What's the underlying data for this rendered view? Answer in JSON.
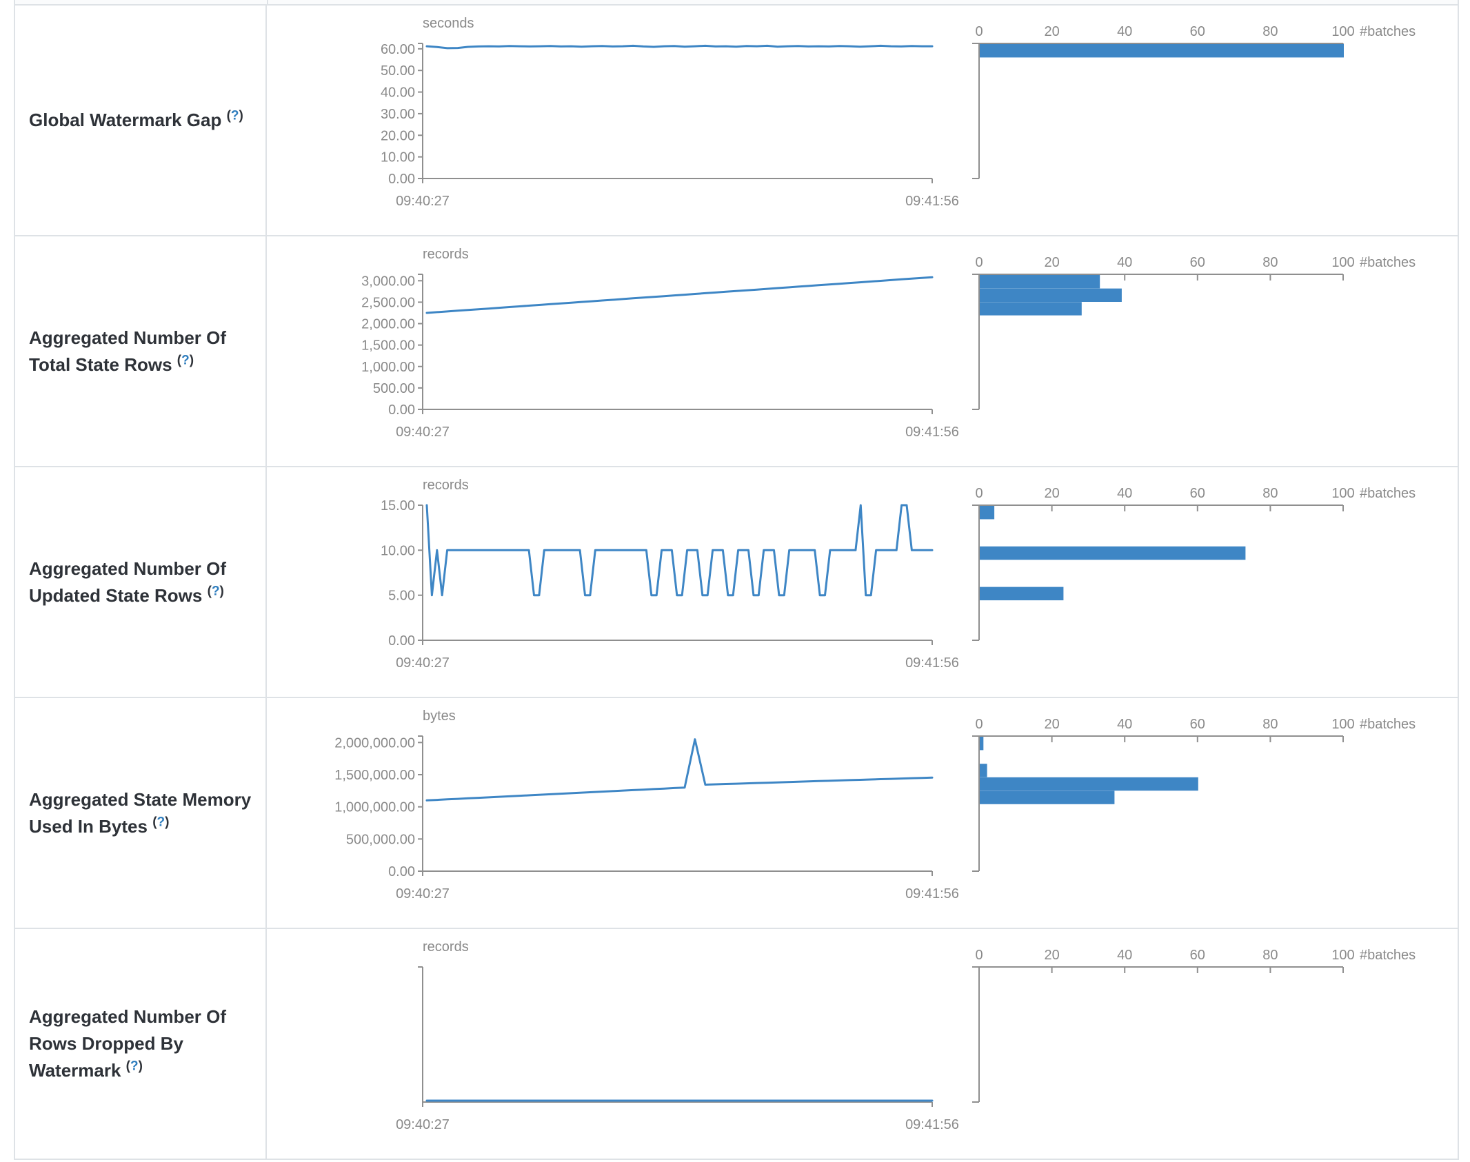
{
  "colors": {
    "accent_blue": "#3e86c5",
    "axis_gray": "#8f8f8f",
    "tick_text_gray": "#8a8a8a",
    "label_dark": "#2e3238",
    "help_blue": "#2e7dbe",
    "border_gray": "#dee2e6"
  },
  "help": {
    "open": "(",
    "q": "?",
    "close": ")"
  },
  "rows": [
    {
      "label": "Global Watermark Gap"
    },
    {
      "label": "Aggregated Number Of Total State Rows"
    },
    {
      "label": "Aggregated Number Of Updated State Rows"
    },
    {
      "label": "Aggregated State Memory Used In Bytes"
    },
    {
      "label": "Aggregated Number Of Rows Dropped By Watermark"
    }
  ],
  "chart_data": [
    {
      "metric": "Global Watermark Gap",
      "timeline": {
        "type": "line",
        "unit": "seconds",
        "x_start_label": "09:40:27",
        "x_end_label": "09:41:56",
        "y_ticks": [
          0,
          10,
          20,
          30,
          40,
          50,
          60
        ],
        "axis_max": 62.5,
        "values": [
          61.2,
          60.8,
          60.3,
          60.4,
          60.9,
          61.1,
          61.2,
          61.1,
          61.3,
          61.2,
          61.1,
          61.2,
          61.3,
          61.1,
          61.2,
          61.0,
          61.2,
          61.3,
          61.1,
          61.2,
          61.4,
          61.1,
          60.9,
          61.2,
          61.3,
          61.0,
          61.2,
          61.4,
          61.1,
          61.2,
          61.0,
          61.3,
          61.2,
          61.4,
          61.0,
          61.2,
          61.3,
          61.1,
          61.2,
          61.1,
          61.3,
          61.2,
          61.0,
          61.2,
          61.4,
          61.2,
          61.1,
          61.3,
          61.2,
          61.2
        ]
      },
      "histogram": {
        "type": "bar",
        "x_label": "#batches",
        "x_ticks": [
          0,
          20,
          40,
          60,
          80,
          100
        ],
        "x_max": 100,
        "bins_top_to_bottom": [
          100,
          0,
          0,
          0,
          0,
          0,
          0,
          0,
          0,
          0
        ]
      }
    },
    {
      "metric": "Aggregated Number Of Total State Rows",
      "timeline": {
        "type": "line",
        "unit": "records",
        "x_start_label": "09:40:27",
        "x_end_label": "09:41:56",
        "y_ticks": [
          0,
          500,
          1000,
          1500,
          2000,
          2500,
          3000
        ],
        "axis_max": 3150,
        "values": [
          2250,
          2267,
          2284,
          2301,
          2318,
          2335,
          2352,
          2369,
          2386,
          2403,
          2420,
          2437,
          2454,
          2471,
          2488,
          2505,
          2522,
          2539,
          2556,
          2573,
          2590,
          2607,
          2624,
          2641,
          2658,
          2675,
          2692,
          2709,
          2726,
          2743,
          2760,
          2777,
          2794,
          2811,
          2828,
          2845,
          2862,
          2879,
          2896,
          2913,
          2930,
          2947,
          2964,
          2981,
          2998,
          3015,
          3032,
          3049,
          3066,
          3083
        ]
      },
      "histogram": {
        "type": "bar",
        "x_label": "#batches",
        "x_ticks": [
          0,
          20,
          40,
          60,
          80,
          100
        ],
        "x_max": 100,
        "bins_top_to_bottom": [
          33,
          39,
          28,
          0,
          0,
          0,
          0,
          0,
          0,
          0
        ]
      }
    },
    {
      "metric": "Aggregated Number Of Updated State Rows",
      "timeline": {
        "type": "line",
        "unit": "records",
        "x_start_label": "09:40:27",
        "x_end_label": "09:41:56",
        "y_ticks": [
          0,
          5,
          10,
          15
        ],
        "axis_max": 15,
        "values": [
          15,
          5,
          10,
          5,
          10,
          10,
          10,
          10,
          10,
          10,
          10,
          10,
          10,
          10,
          10,
          10,
          10,
          10,
          10,
          10,
          10,
          5,
          5,
          10,
          10,
          10,
          10,
          10,
          10,
          10,
          10,
          5,
          5,
          10,
          10,
          10,
          10,
          10,
          10,
          10,
          10,
          10,
          10,
          10,
          5,
          5,
          10,
          10,
          10,
          5,
          5,
          10,
          10,
          10,
          5,
          5,
          10,
          10,
          10,
          5,
          5,
          10,
          10,
          10,
          5,
          5,
          10,
          10,
          10,
          5,
          5,
          10,
          10,
          10,
          10,
          10,
          10,
          5,
          5,
          10,
          10,
          10,
          10,
          10,
          10,
          15,
          5,
          5,
          10,
          10,
          10,
          10,
          10,
          15,
          15,
          10,
          10,
          10,
          10,
          10
        ]
      },
      "histogram": {
        "type": "bar",
        "x_label": "#batches",
        "x_ticks": [
          0,
          20,
          40,
          60,
          80,
          100
        ],
        "x_max": 100,
        "bins_top_to_bottom": [
          4,
          0,
          0,
          73,
          0,
          0,
          23,
          0,
          0,
          0
        ]
      }
    },
    {
      "metric": "Aggregated State Memory Used In Bytes",
      "timeline": {
        "type": "line",
        "unit": "bytes",
        "x_start_label": "09:40:27",
        "x_end_label": "09:41:56",
        "y_ticks": [
          0,
          500000,
          1000000,
          1500000,
          2000000
        ],
        "axis_max": 2100000,
        "values": [
          1100000,
          1108000,
          1116000,
          1124000,
          1132000,
          1140000,
          1148000,
          1156000,
          1164000,
          1172000,
          1180000,
          1188000,
          1196000,
          1204000,
          1212000,
          1220000,
          1228000,
          1236000,
          1244000,
          1252000,
          1260000,
          1268000,
          1276000,
          1284000,
          1292000,
          1300000,
          2050000,
          1345000,
          1350000,
          1355000,
          1360000,
          1365000,
          1370000,
          1375000,
          1380000,
          1385000,
          1390000,
          1395000,
          1400000,
          1405000,
          1410000,
          1415000,
          1420000,
          1425000,
          1430000,
          1435000,
          1440000,
          1445000,
          1450000,
          1455000
        ]
      },
      "histogram": {
        "type": "bar",
        "x_label": "#batches",
        "x_ticks": [
          0,
          20,
          40,
          60,
          80,
          100
        ],
        "x_max": 100,
        "bins_top_to_bottom": [
          1,
          0,
          2,
          60,
          37,
          0,
          0,
          0,
          0,
          0
        ]
      }
    },
    {
      "metric": "Aggregated Number Of Rows Dropped By Watermark",
      "timeline": {
        "type": "line",
        "unit": "records",
        "x_start_label": "09:40:27",
        "x_end_label": "09:41:56",
        "y_ticks": [],
        "axis_max": null,
        "values": [
          0,
          0,
          0,
          0,
          0,
          0,
          0,
          0,
          0,
          0
        ]
      },
      "histogram": {
        "type": "bar",
        "x_label": "#batches",
        "x_ticks": [
          0,
          20,
          40,
          60,
          80,
          100
        ],
        "x_max": 100,
        "bins_top_to_bottom": [
          0,
          0,
          0,
          0,
          0,
          0,
          0,
          0,
          0,
          0
        ]
      }
    }
  ]
}
